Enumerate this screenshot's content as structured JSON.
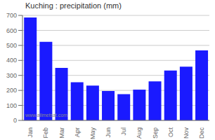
{
  "chart_data": {
    "type": "bar",
    "title": "Kuching : precipitation (mm)",
    "categories": [
      "Jan",
      "Feb",
      "Mar",
      "Apr",
      "May",
      "Jun",
      "Jul",
      "Aug",
      "Sep",
      "Oct",
      "Nov",
      "Dec"
    ],
    "values": [
      686,
      524,
      350,
      254,
      232,
      196,
      175,
      205,
      260,
      333,
      358,
      467
    ],
    "color": "#1a1aff",
    "ylim": [
      0,
      700
    ],
    "yticks": [
      0,
      100,
      200,
      300,
      400,
      500,
      600,
      700
    ],
    "grid": true,
    "annotations": [
      "www.allmetsat.com"
    ]
  }
}
